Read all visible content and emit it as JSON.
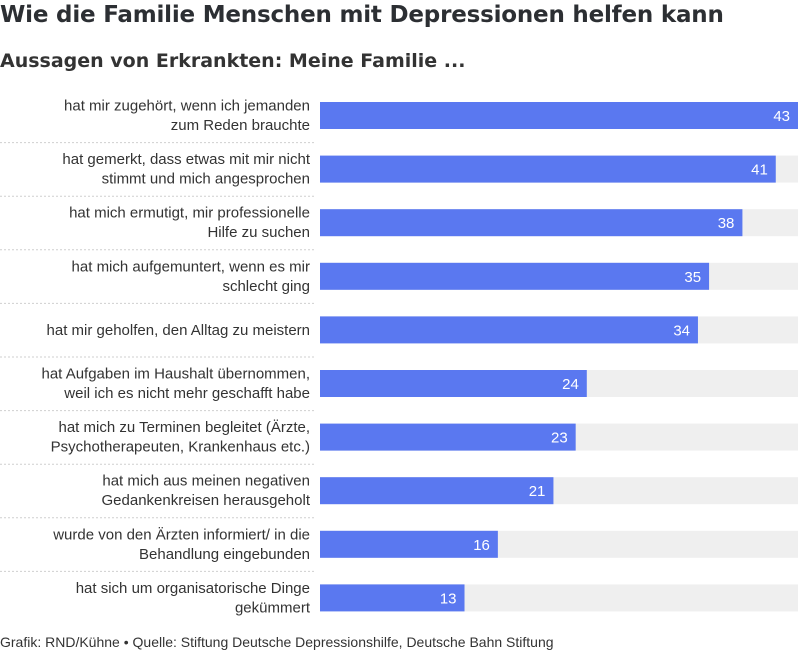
{
  "title": "Wie die Familie Menschen mit Depressionen helfen kann",
  "subtitle": "Aussagen von Erkrankten: Meine Familie ...",
  "footer": {
    "credit": "Grafik: RND/Kühne",
    "separator": "•",
    "source": "Quelle: Stiftung Deutsche Depressionshilfe, Deutsche Bahn Stiftung"
  },
  "colors": {
    "bar": "#5a78f0",
    "track": "#efefef",
    "divider": "#cfcfcf"
  },
  "chart_data": {
    "type": "bar",
    "orientation": "horizontal",
    "xlim": [
      0,
      43
    ],
    "categories": [
      [
        "hat mir zugehört, wenn ich jemanden",
        "zum Reden brauchte"
      ],
      [
        "hat gemerkt, dass etwas mit mir nicht",
        "stimmt und mich angesprochen"
      ],
      [
        "hat mich ermutigt, mir professionelle",
        "Hilfe zu suchen"
      ],
      [
        "hat mich aufgemuntert, wenn es mir",
        "schlecht ging"
      ],
      [
        "hat mir geholfen, den Alltag zu meistern"
      ],
      [
        "hat Aufgaben im Haushalt übernommen,",
        "weil ich es nicht mehr geschafft habe"
      ],
      [
        "hat mich zu Terminen begleitet (Ärzte,",
        "Psychotherapeuten, Krankenhaus etc.)"
      ],
      [
        "hat mich aus meinen negativen",
        "Gedankenkreisen herausgeholt"
      ],
      [
        "wurde von den Ärzten informiert/ in die",
        "Behandlung eingebunden"
      ],
      [
        "hat sich um organisatorische Dinge",
        "gekümmert"
      ]
    ],
    "values": [
      43,
      41,
      38,
      35,
      34,
      24,
      23,
      21,
      16,
      13
    ],
    "grid": false,
    "legend": "none"
  }
}
